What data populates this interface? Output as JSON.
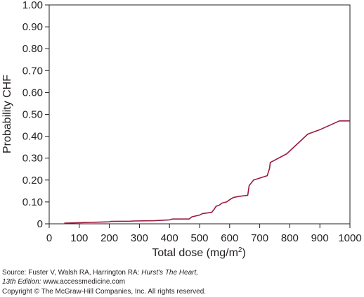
{
  "chart_data": {
    "type": "line",
    "xlabel_text": "Total dose (mg/m",
    "xlabel_sup": "2",
    "xlabel_close": ")",
    "ylabel": "Probability CHF",
    "xlim": [
      0,
      1000
    ],
    "ylim": [
      0,
      1.0
    ],
    "x_ticks": [
      "0",
      "100",
      "200",
      "300",
      "400",
      "500",
      "600",
      "700",
      "800",
      "900",
      "1000"
    ],
    "y_ticks": [
      "0",
      "0.10",
      "0.20",
      "0.30",
      "0.40",
      "0.50",
      "0.60",
      "0.70",
      "0.80",
      "0.90",
      "1.00"
    ],
    "grid": false,
    "color": "#9b1b3e",
    "series": [
      {
        "x": [
          50,
          100,
          150,
          200,
          205,
          270,
          280,
          350,
          400,
          410,
          430,
          465,
          475,
          500,
          510,
          540,
          548,
          555,
          565,
          575,
          590,
          600,
          612,
          630,
          660,
          665,
          680,
          725,
          733,
          735,
          790,
          860,
          900,
          965,
          1000
        ],
        "y": [
          0.003,
          0.005,
          0.007,
          0.009,
          0.011,
          0.012,
          0.013,
          0.014,
          0.018,
          0.022,
          0.022,
          0.022,
          0.032,
          0.04,
          0.047,
          0.052,
          0.065,
          0.08,
          0.085,
          0.095,
          0.1,
          0.11,
          0.12,
          0.125,
          0.13,
          0.175,
          0.2,
          0.22,
          0.255,
          0.28,
          0.32,
          0.41,
          0.43,
          0.47,
          0.47
        ]
      }
    ]
  },
  "source": {
    "line1_prefix": "Source: Fuster V, Walsh RA, Harrington RA: ",
    "line1_title": "Hurst's The Heart,",
    "line2_edition": "13th Edition:",
    "line2_url": " www.accessmedicine.com",
    "line3": "Copyright © The McGraw-Hill Companies, Inc. All rights reserved."
  }
}
